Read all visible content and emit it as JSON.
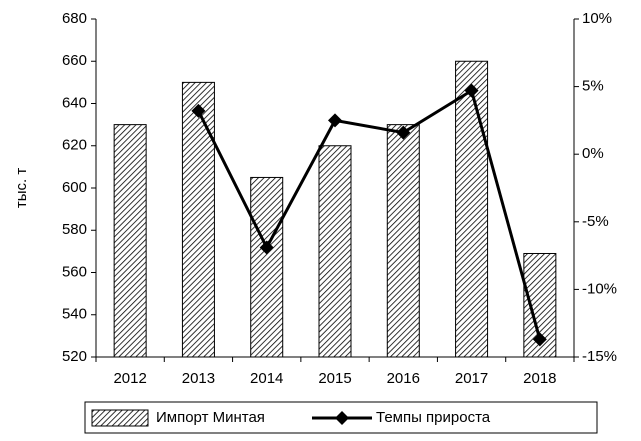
{
  "chart_data": {
    "type": "bar_line",
    "ylabel": "тыс. т",
    "categories": [
      "2012",
      "2013",
      "2014",
      "2015",
      "2016",
      "2017",
      "2018"
    ],
    "series": [
      {
        "name": "Импорт Минтая",
        "type": "bar",
        "color": "#000000",
        "values": [
          630,
          650,
          605,
          620,
          630,
          660,
          569
        ]
      },
      {
        "name": "Темпы прироста",
        "type": "line",
        "axis": "y2",
        "color": "#000000",
        "values": [
          null,
          3.2,
          -6.9,
          2.5,
          1.6,
          4.7,
          -13.7
        ]
      }
    ],
    "ylim": [
      520,
      680
    ],
    "yticks": [
      520,
      540,
      560,
      580,
      600,
      620,
      640,
      660,
      680
    ],
    "y2lim": [
      -15,
      10
    ],
    "y2ticks": [
      {
        "value": -15,
        "label": "-15%"
      },
      {
        "value": -10,
        "label": "-10%"
      },
      {
        "value": -5,
        "label": "-5%"
      },
      {
        "value": 0,
        "label": "0%"
      },
      {
        "value": 5,
        "label": "5%"
      },
      {
        "value": 10,
        "label": "10%"
      }
    ],
    "legend": "bottom",
    "grid": false
  }
}
